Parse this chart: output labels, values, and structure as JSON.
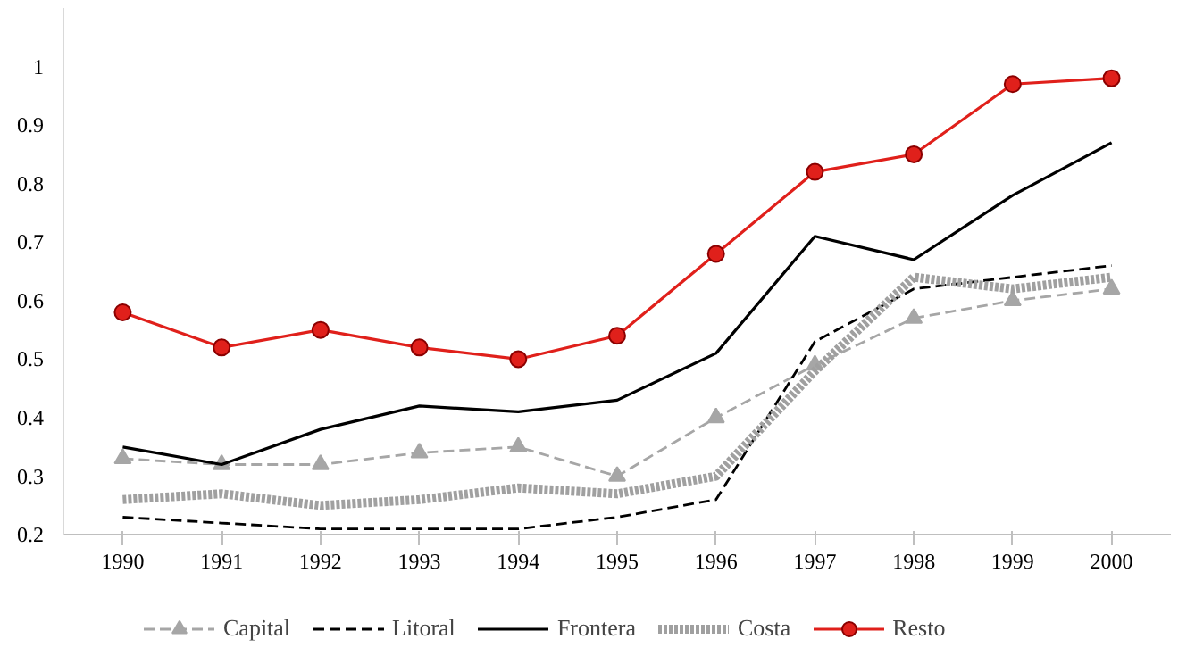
{
  "chart_data": {
    "type": "line",
    "x": [
      1990,
      1991,
      1992,
      1993,
      1994,
      1995,
      1996,
      1997,
      1998,
      1999,
      2000
    ],
    "xlim": [
      1989.4,
      2000.6
    ],
    "xticks": [
      1990,
      1991,
      1992,
      1993,
      1994,
      1995,
      1996,
      1997,
      1998,
      1999,
      2000
    ],
    "ylim": [
      0.2,
      1.1
    ],
    "yticks": [
      0.2,
      0.3,
      0.4,
      0.5,
      0.6,
      0.7,
      0.8,
      0.9,
      1
    ],
    "grid": false,
    "legend": "bottom",
    "series": [
      {
        "name": "Capital",
        "color": "#a6a6a6",
        "line_style": "dashed",
        "marker": "triangle",
        "values": [
          0.33,
          0.32,
          0.32,
          0.34,
          0.35,
          0.3,
          0.4,
          0.49,
          0.57,
          0.6,
          0.62
        ]
      },
      {
        "name": "Litoral",
        "color": "#000000",
        "line_style": "dashed",
        "marker": "none",
        "values": [
          0.23,
          0.22,
          0.21,
          0.21,
          0.21,
          0.23,
          0.26,
          0.53,
          0.62,
          0.64,
          0.66
        ]
      },
      {
        "name": "Frontera",
        "color": "#000000",
        "line_style": "solid",
        "marker": "none",
        "values": [
          0.35,
          0.32,
          0.38,
          0.42,
          0.41,
          0.43,
          0.51,
          0.71,
          0.67,
          0.78,
          0.87
        ]
      },
      {
        "name": "Costa",
        "color": "#a0a0a0",
        "line_style": "dotted",
        "marker": "none",
        "values": [
          0.26,
          0.27,
          0.25,
          0.26,
          0.28,
          0.27,
          0.3,
          0.48,
          0.64,
          0.62,
          0.64
        ]
      },
      {
        "name": "Resto",
        "color": "#e0201b",
        "line_style": "solid",
        "marker": "circle",
        "values": [
          0.58,
          0.52,
          0.55,
          0.52,
          0.5,
          0.54,
          0.68,
          0.82,
          0.85,
          0.97,
          0.98
        ]
      }
    ]
  }
}
